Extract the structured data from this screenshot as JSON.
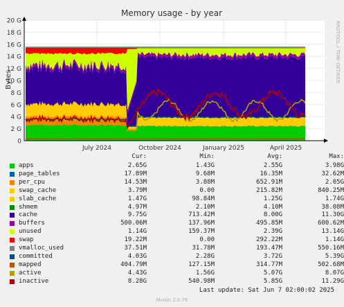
{
  "chart_data": {
    "type": "area",
    "title": "Memory usage - by year",
    "ylabel": "Bytes",
    "side_label": "RRDTOOL / TOBI OETIKER",
    "ylim": [
      0,
      20
    ],
    "y_unit": "G",
    "y_ticks": [
      "0",
      "2 G",
      "4 G",
      "6 G",
      "8 G",
      "10 G",
      "12 G",
      "14 G",
      "16 G",
      "18 G",
      "20 G"
    ],
    "x_ticks": [
      "July 2024",
      "October 2024",
      "January 2025",
      "April 2025"
    ],
    "grid": true,
    "columns": [
      "Cur:",
      "Min:",
      "Avg:",
      "Max:"
    ],
    "series": [
      {
        "name": "apps",
        "color": "#00cc00",
        "cur": "2.65G",
        "min": "1.43G",
        "avg": "2.55G",
        "max": "3.98G"
      },
      {
        "name": "page_tables",
        "color": "#0066b3",
        "cur": "17.89M",
        "min": "9.68M",
        "avg": "16.35M",
        "max": "32.62M"
      },
      {
        "name": "per_cpu",
        "color": "#ff8000",
        "cur": "14.53M",
        "min": "3.88M",
        "avg": "652.91M",
        "max": "2.05G"
      },
      {
        "name": "swap_cache",
        "color": "#ffcc00",
        "cur": "3.79M",
        "min": "0.00",
        "avg": "215.82M",
        "max": "840.25M"
      },
      {
        "name": "slab_cache",
        "color": "#ffcc00",
        "cur": "1.47G",
        "min": "98.84M",
        "avg": "1.25G",
        "max": "1.74G"
      },
      {
        "name": "shmem",
        "color": "#008f00",
        "cur": "4.97M",
        "min": "2.10M",
        "avg": "4.10M",
        "max": "38.08M"
      },
      {
        "name": "cache",
        "color": "#330099",
        "cur": "9.75G",
        "min": "713.42M",
        "avg": "8.00G",
        "max": "11.30G"
      },
      {
        "name": "buffers",
        "color": "#990099",
        "cur": "500.06M",
        "min": "137.96M",
        "avg": "495.85M",
        "max": "600.62M"
      },
      {
        "name": "unused",
        "color": "#ccff00",
        "cur": "1.14G",
        "min": "159.37M",
        "avg": "2.39G",
        "max": "13.14G"
      },
      {
        "name": "swap",
        "color": "#ff0000",
        "cur": "19.22M",
        "min": "0.00",
        "avg": "292.22M",
        "max": "1.14G"
      },
      {
        "name": "vmalloc_used",
        "color": "#808080",
        "cur": "37.51M",
        "min": "31.78M",
        "avg": "193.47M",
        "max": "550.16M"
      },
      {
        "name": "committed",
        "color": "#004d80",
        "cur": "4.03G",
        "min": "2.28G",
        "avg": "3.72G",
        "max": "5.39G"
      },
      {
        "name": "mapped",
        "color": "#b35a00",
        "cur": "404.79M",
        "min": "127.15M",
        "avg": "314.77M",
        "max": "502.68M"
      },
      {
        "name": "active",
        "color": "#b3a000",
        "cur": "4.43G",
        "min": "1.56G",
        "avg": "5.07G",
        "max": "8.07G"
      },
      {
        "name": "inactive",
        "color": "#b30000",
        "cur": "8.28G",
        "min": "540.98M",
        "avg": "5.85G",
        "max": "11.29G"
      }
    ],
    "last_update": "Last update: Sat Jun  7 02:00:02 2025",
    "footer": "Munin 2.0.76"
  }
}
